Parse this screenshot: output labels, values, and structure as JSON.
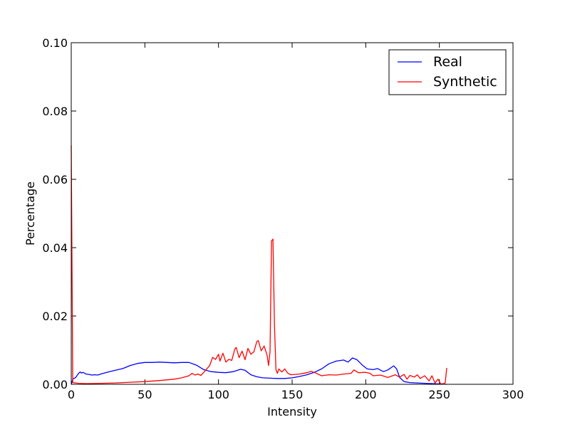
{
  "chart_data": {
    "type": "line",
    "xlabel": "Intensity",
    "ylabel": "Percentage",
    "xlim": [
      0,
      300
    ],
    "ylim": [
      0,
      0.1
    ],
    "x_ticks": [
      0,
      50,
      100,
      150,
      200,
      250,
      300
    ],
    "x_tick_labels": [
      "0",
      "50",
      "100",
      "150",
      "200",
      "250",
      "300"
    ],
    "y_ticks": [
      0,
      0.02,
      0.04,
      0.06,
      0.08,
      0.1
    ],
    "y_tick_labels": [
      "0.00",
      "0.02",
      "0.04",
      "0.06",
      "0.08",
      "0.10"
    ],
    "grid": false,
    "legend_position": "top-right",
    "series": [
      {
        "name": "Real",
        "color": "#0000ff",
        "points": [
          [
            0,
            0.0
          ],
          [
            1,
            0.0015
          ],
          [
            3,
            0.002
          ],
          [
            5,
            0.0032
          ],
          [
            6,
            0.0036
          ],
          [
            7,
            0.0033
          ],
          [
            8,
            0.0035
          ],
          [
            10,
            0.003
          ],
          [
            12,
            0.0029
          ],
          [
            14,
            0.0027
          ],
          [
            16,
            0.0028
          ],
          [
            18,
            0.0027
          ],
          [
            20,
            0.003
          ],
          [
            25,
            0.0036
          ],
          [
            30,
            0.0041
          ],
          [
            35,
            0.0046
          ],
          [
            40,
            0.0055
          ],
          [
            45,
            0.0061
          ],
          [
            50,
            0.0064
          ],
          [
            55,
            0.0064
          ],
          [
            60,
            0.0065
          ],
          [
            65,
            0.0064
          ],
          [
            70,
            0.0063
          ],
          [
            75,
            0.0064
          ],
          [
            80,
            0.0064
          ],
          [
            85,
            0.0056
          ],
          [
            90,
            0.0043
          ],
          [
            95,
            0.0037
          ],
          [
            100,
            0.0035
          ],
          [
            105,
            0.0034
          ],
          [
            110,
            0.0037
          ],
          [
            115,
            0.0044
          ],
          [
            118,
            0.0041
          ],
          [
            122,
            0.0028
          ],
          [
            126,
            0.0022
          ],
          [
            130,
            0.0019
          ],
          [
            135,
            0.0018
          ],
          [
            140,
            0.0017
          ],
          [
            145,
            0.0017
          ],
          [
            150,
            0.0019
          ],
          [
            155,
            0.0023
          ],
          [
            160,
            0.0028
          ],
          [
            165,
            0.0035
          ],
          [
            170,
            0.0045
          ],
          [
            175,
            0.006
          ],
          [
            180,
            0.0068
          ],
          [
            185,
            0.0071
          ],
          [
            188,
            0.0065
          ],
          [
            191,
            0.0077
          ],
          [
            194,
            0.0072
          ],
          [
            198,
            0.0055
          ],
          [
            201,
            0.0045
          ],
          [
            205,
            0.0043
          ],
          [
            208,
            0.0046
          ],
          [
            212,
            0.0037
          ],
          [
            215,
            0.0042
          ],
          [
            219,
            0.0054
          ],
          [
            221,
            0.0045
          ],
          [
            223,
            0.002
          ],
          [
            226,
            0.0008
          ],
          [
            230,
            0.0005
          ],
          [
            235,
            0.0004
          ],
          [
            240,
            0.0003
          ],
          [
            245,
            0.0002
          ],
          [
            250,
            0.0001
          ],
          [
            255,
            0.0
          ]
        ]
      },
      {
        "name": "Synthetic",
        "color": "#ff0000",
        "points": [
          [
            0,
            0.07
          ],
          [
            1,
            0.0005
          ],
          [
            5,
            0.0003
          ],
          [
            10,
            0.0002
          ],
          [
            20,
            0.0003
          ],
          [
            30,
            0.0004
          ],
          [
            40,
            0.0006
          ],
          [
            50,
            0.0008
          ],
          [
            60,
            0.0011
          ],
          [
            70,
            0.0015
          ],
          [
            75,
            0.0019
          ],
          [
            80,
            0.0025
          ],
          [
            82,
            0.0032
          ],
          [
            84,
            0.0027
          ],
          [
            86,
            0.003
          ],
          [
            88,
            0.0026
          ],
          [
            90,
            0.0035
          ],
          [
            92,
            0.0045
          ],
          [
            94,
            0.0055
          ],
          [
            96,
            0.0079
          ],
          [
            98,
            0.0073
          ],
          [
            100,
            0.0088
          ],
          [
            101,
            0.0068
          ],
          [
            103,
            0.0091
          ],
          [
            105,
            0.0065
          ],
          [
            107,
            0.0073
          ],
          [
            109,
            0.007
          ],
          [
            111,
            0.0102
          ],
          [
            112,
            0.0108
          ],
          [
            114,
            0.0078
          ],
          [
            116,
            0.0097
          ],
          [
            118,
            0.0072
          ],
          [
            120,
            0.0105
          ],
          [
            122,
            0.0088
          ],
          [
            124,
            0.0095
          ],
          [
            126,
            0.0125
          ],
          [
            127,
            0.0128
          ],
          [
            129,
            0.0098
          ],
          [
            131,
            0.0112
          ],
          [
            133,
            0.0085
          ],
          [
            134,
            0.0055
          ],
          [
            135,
            0.0095
          ],
          [
            136,
            0.042
          ],
          [
            137,
            0.0425
          ],
          [
            138,
            0.0175
          ],
          [
            139,
            0.0043
          ],
          [
            140,
            0.0032
          ],
          [
            141,
            0.0045
          ],
          [
            143,
            0.0036
          ],
          [
            145,
            0.0045
          ],
          [
            147,
            0.0033
          ],
          [
            149,
            0.0028
          ],
          [
            155,
            0.003
          ],
          [
            160,
            0.0034
          ],
          [
            163,
            0.0038
          ],
          [
            166,
            0.0033
          ],
          [
            170,
            0.0025
          ],
          [
            175,
            0.0028
          ],
          [
            180,
            0.0027
          ],
          [
            185,
            0.003
          ],
          [
            190,
            0.0032
          ],
          [
            192,
            0.0042
          ],
          [
            195,
            0.0034
          ],
          [
            200,
            0.0035
          ],
          [
            203,
            0.0032
          ],
          [
            205,
            0.0025
          ],
          [
            210,
            0.0027
          ],
          [
            215,
            0.002
          ],
          [
            220,
            0.0028
          ],
          [
            223,
            0.0021
          ],
          [
            226,
            0.0029
          ],
          [
            228,
            0.0015
          ],
          [
            230,
            0.0026
          ],
          [
            233,
            0.0021
          ],
          [
            235,
            0.0028
          ],
          [
            237,
            0.0017
          ],
          [
            240,
            0.0025
          ],
          [
            243,
            0.001
          ],
          [
            245,
            0.0025
          ],
          [
            247,
            0.0004
          ],
          [
            249,
            0.0015
          ],
          [
            251,
            0.0001
          ],
          [
            253,
            0.0002
          ],
          [
            254,
            0.0005
          ],
          [
            255,
            0.0048
          ]
        ]
      }
    ]
  }
}
